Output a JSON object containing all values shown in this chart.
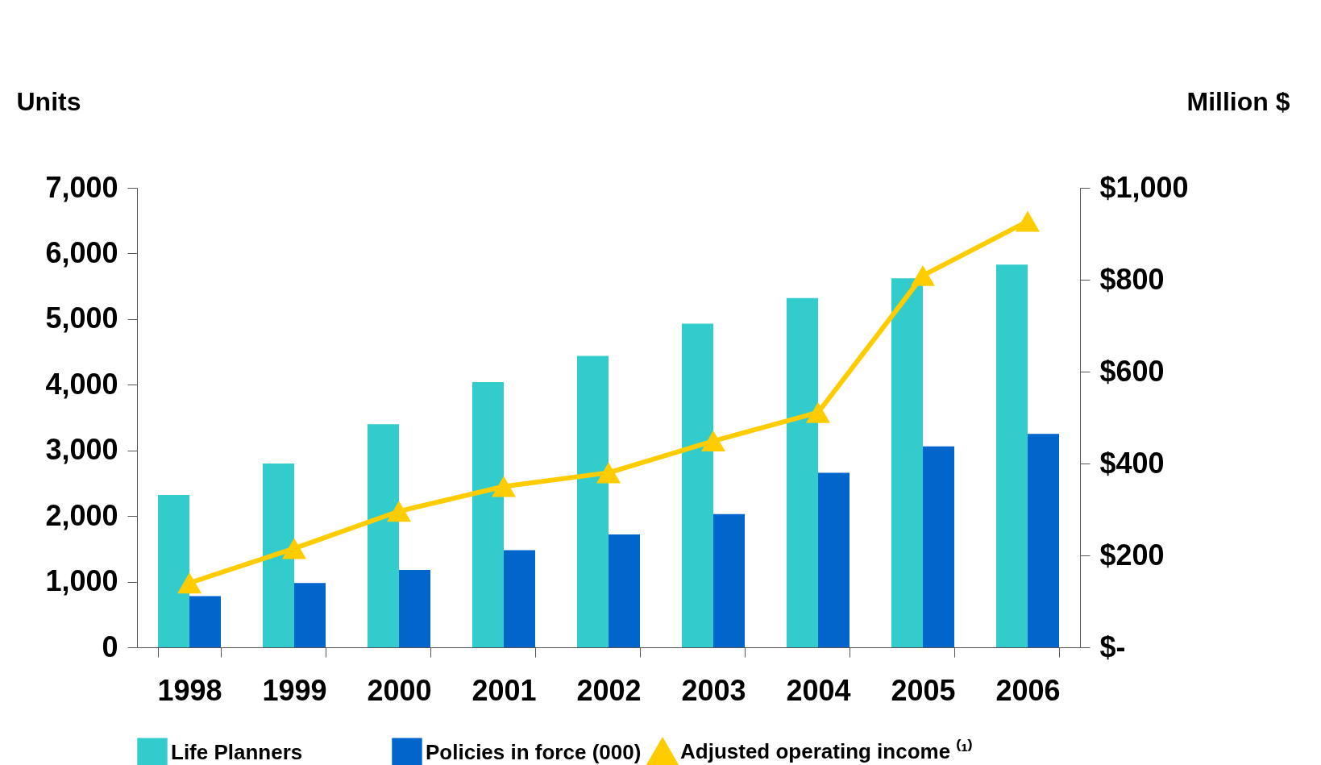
{
  "chart_data": {
    "type": "bar",
    "categories": [
      "1998",
      "1999",
      "2000",
      "2001",
      "2002",
      "2003",
      "2004",
      "2005",
      "2006"
    ],
    "ylabel": "Units",
    "y2label": "Million $",
    "series": [
      {
        "name": "Life Planners",
        "color": "#33cccc",
        "values": [
          2320,
          2800,
          3400,
          4040,
          4440,
          4930,
          5320,
          5620,
          5830
        ]
      },
      {
        "name": "Policies in force (000)",
        "color": "#0066cc",
        "values": [
          780,
          980,
          1180,
          1480,
          1720,
          2030,
          2660,
          3060,
          3250
        ]
      },
      {
        "name": "Adjusted operating income ⁽¹⁾",
        "type": "line",
        "axis": "y2",
        "color": "#ffcc00",
        "marker": "triangle",
        "values": [
          140,
          215,
          296,
          350,
          380,
          449,
          511,
          809,
          927
        ]
      }
    ],
    "ylim": [
      0,
      7000
    ],
    "yticks": [
      0,
      {
        "value": 1000,
        "label": "1,000"
      },
      {
        "value": 2000,
        "label": "2,000"
      },
      {
        "value": 3000,
        "label": "3,000"
      },
      {
        "value": 4000,
        "label": "4,000"
      },
      {
        "value": 5000,
        "label": "5,000"
      },
      {
        "value": 6000,
        "label": "6,000"
      },
      {
        "value": 7000,
        "label": "7,000"
      }
    ],
    "y2lim": [
      0,
      1000
    ],
    "y2ticks": [
      {
        "value": 0,
        "label": "$-"
      },
      {
        "value": 200,
        "label": "$200"
      },
      {
        "value": 400,
        "label": "$400"
      },
      {
        "value": 600,
        "label": "$600"
      },
      {
        "value": 800,
        "label": "$800"
      },
      {
        "value": 1000,
        "label": "$1,000"
      }
    ],
    "grid": false,
    "legend": "bottom"
  }
}
